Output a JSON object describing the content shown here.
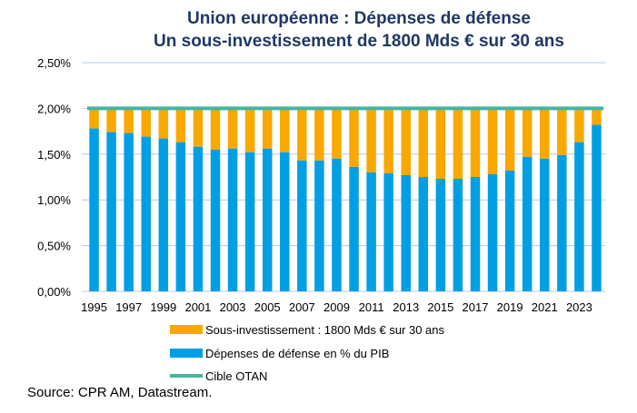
{
  "chart_data": {
    "type": "bar",
    "stacked": true,
    "title": "Union européenne : Dépenses de défense",
    "subtitle": "Un sous-investissement de 1800 Mds € sur 30 ans",
    "categories": [
      1995,
      1996,
      1997,
      1998,
      1999,
      2000,
      2001,
      2002,
      2003,
      2004,
      2005,
      2006,
      2007,
      2008,
      2009,
      2010,
      2011,
      2012,
      2013,
      2014,
      2015,
      2016,
      2017,
      2018,
      2019,
      2020,
      2021,
      2022,
      2023,
      2024
    ],
    "tick_labels": [
      "1995",
      "1997",
      "1999",
      "2001",
      "2003",
      "2005",
      "2007",
      "2009",
      "2011",
      "2013",
      "2015",
      "2017",
      "2019",
      "2021",
      "2023"
    ],
    "y_tick_labels": [
      "0,00%",
      "0,50%",
      "1,00%",
      "1,50%",
      "2,00%",
      "2,50%"
    ],
    "ylim": [
      0,
      2.5
    ],
    "grid": true,
    "legend_placement": "bottom",
    "series": [
      {
        "name": "Dépenses de défense en % du PIB",
        "color": "#009fe3",
        "values": [
          1.78,
          1.74,
          1.73,
          1.69,
          1.67,
          1.63,
          1.58,
          1.55,
          1.56,
          1.52,
          1.56,
          1.52,
          1.43,
          1.43,
          1.45,
          1.36,
          1.3,
          1.29,
          1.27,
          1.25,
          1.23,
          1.23,
          1.25,
          1.28,
          1.32,
          1.47,
          1.45,
          1.49,
          1.63,
          1.82
        ]
      },
      {
        "name": "Sous-investissement : 1800 Mds € sur 30 ans",
        "color": "#f9a800",
        "stack_to": 2.0
      },
      {
        "name": "Cible OTAN",
        "color": "#45b5a0",
        "type": "line",
        "value": 2.0
      }
    ],
    "source": "Source: CPR AM, Datastream."
  }
}
